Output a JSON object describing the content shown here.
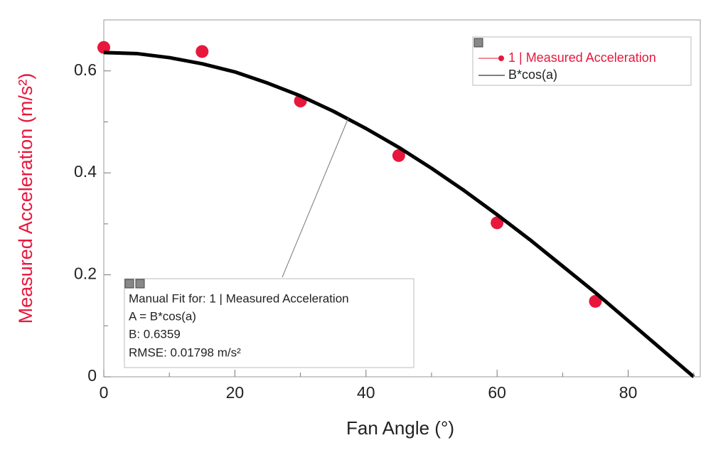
{
  "chart_data": {
    "type": "scatter",
    "x_label": "Fan Angle (°)",
    "y_label": "Measured Acceleration (m/s²)",
    "xlim": [
      0,
      91
    ],
    "ylim": [
      0,
      0.7
    ],
    "xticks": [
      0,
      20,
      40,
      60,
      80
    ],
    "xminorticks": [
      10,
      30,
      50,
      70,
      90
    ],
    "yticks": [
      0,
      0.2,
      0.4,
      0.6
    ],
    "yminorticks": [
      0.1,
      0.3,
      0.5
    ],
    "series": [
      {
        "name": "1 | Measured Acceleration",
        "color": "#e8173c",
        "kind": "points",
        "x": [
          0,
          15,
          30,
          45,
          60,
          75
        ],
        "values": [
          0.646,
          0.638,
          0.541,
          0.434,
          0.302,
          0.148
        ]
      },
      {
        "name": "B*cos(a)",
        "color": "#000000",
        "kind": "line",
        "x": [
          0,
          5,
          10,
          15,
          20,
          25,
          30,
          35,
          40,
          45,
          50,
          55,
          60,
          65,
          70,
          75,
          80,
          85,
          90
        ],
        "values": [
          0.636,
          0.634,
          0.626,
          0.614,
          0.598,
          0.576,
          0.551,
          0.521,
          0.487,
          0.45,
          0.409,
          0.365,
          0.318,
          0.269,
          0.217,
          0.165,
          0.11,
          0.055,
          0
        ]
      }
    ],
    "annotation": [
      "Manual Fit for: 1 | Measured Acceleration",
      "A = B*cos(a)",
      "B: 0.6359",
      "RMSE: 0.01798 m/s²"
    ]
  }
}
